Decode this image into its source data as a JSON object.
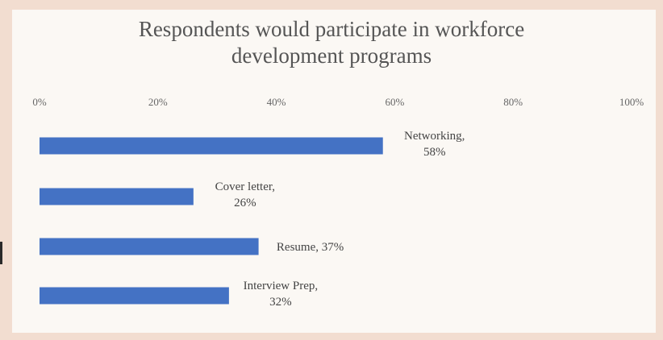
{
  "chart_data": {
    "type": "bar",
    "orientation": "horizontal",
    "title": "Respondents would participate in workforce development programs",
    "title_lines": [
      "Respondents would participate in workforce",
      "development programs"
    ],
    "x_axis": {
      "position": "top",
      "range": [
        0,
        100
      ],
      "unit": "%",
      "tick_labels": [
        "0%",
        "20%",
        "40%",
        "60%",
        "80%",
        "100%"
      ]
    },
    "grid": false,
    "legend": "none",
    "bar_color": "#4472c4",
    "categories": [
      "Networking",
      "Cover letter",
      "Resume",
      "Interview Prep"
    ],
    "values": [
      58,
      26,
      37,
      32
    ],
    "data_labels": [
      [
        "Networking,",
        "58%"
      ],
      [
        "Cover letter,",
        "26%"
      ],
      [
        "Resume, 37%"
      ],
      [
        "Interview Prep,",
        "32%"
      ]
    ]
  }
}
